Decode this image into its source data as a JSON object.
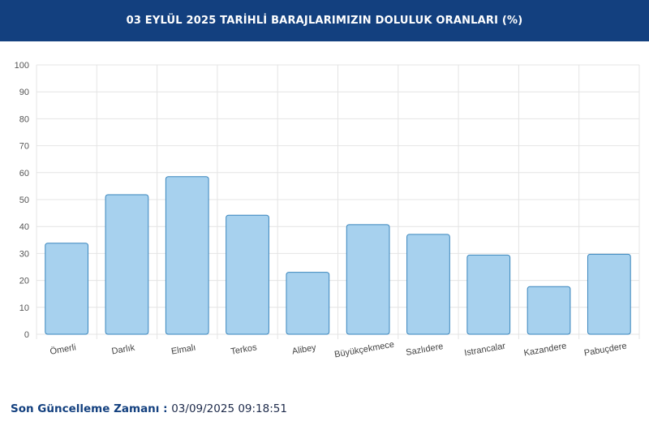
{
  "header": {
    "title": "03 EYLÜL 2025 TARİHLİ BARAJLARIMIZIN DOLULUK ORANLARI (%)"
  },
  "footer": {
    "label": "Son Güncelleme Zamanı : ",
    "value": "03/09/2025 09:18:51"
  },
  "colors": {
    "header_bg": "#13407f",
    "bar_fill": "#a7d1ee",
    "bar_stroke": "#3a86bd",
    "grid": "#e4e4e4"
  },
  "chart_data": {
    "type": "bar",
    "title": "03 EYLÜL 2025 TARİHLİ BARAJLARIMIZIN DOLULUK ORANLARI (%)",
    "categories": [
      "Ömerli",
      "Darlık",
      "Elmalı",
      "Terkos",
      "Alibey",
      "Büyükçekmece",
      "Sazlıdere",
      "Istrancalar",
      "Kazandere",
      "Pabuçdere"
    ],
    "values": [
      33.8,
      51.8,
      58.5,
      44.2,
      23.0,
      40.7,
      37.1,
      29.4,
      17.7,
      29.7
    ],
    "yticks": [
      0,
      10,
      20,
      30,
      40,
      50,
      60,
      70,
      80,
      90,
      100
    ],
    "ylim": [
      0,
      100
    ],
    "grid": true,
    "legend": "none"
  }
}
